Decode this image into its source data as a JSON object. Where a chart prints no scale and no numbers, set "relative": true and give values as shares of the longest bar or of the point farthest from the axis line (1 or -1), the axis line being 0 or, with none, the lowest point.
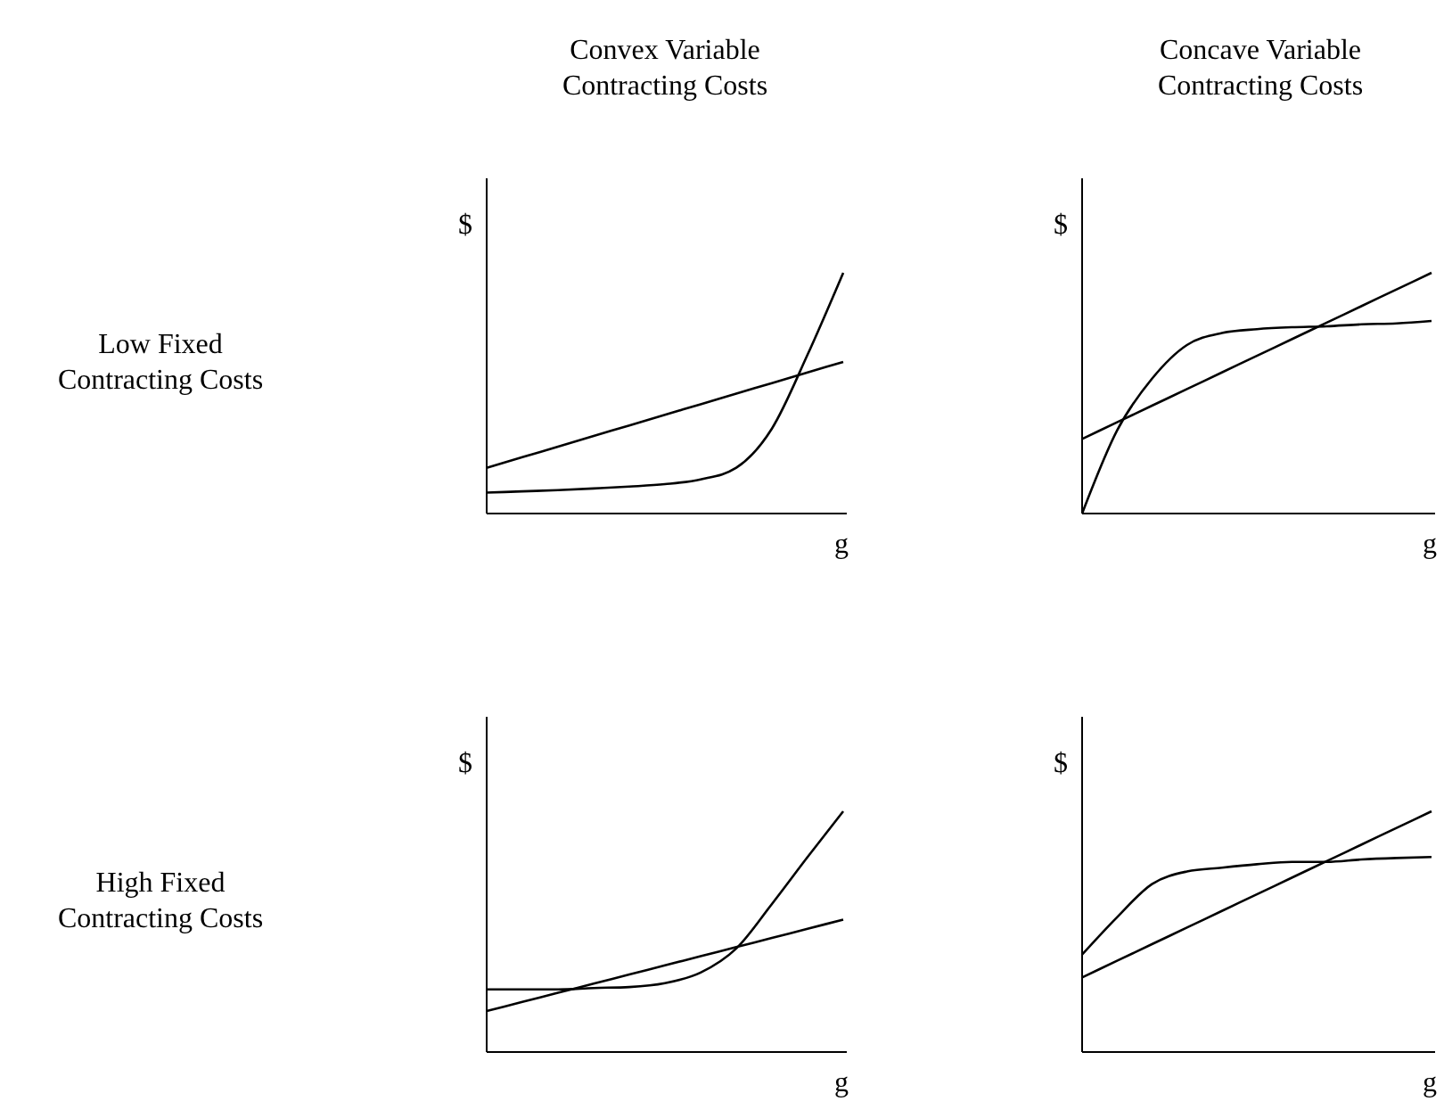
{
  "chart_data": [
    {
      "type": "line",
      "relative": true,
      "title": "Convex Variable\nContracting Costs",
      "xlabel": "g",
      "ylabel": "$",
      "annotations": [
        "Low Fixed\nContracting Costs"
      ],
      "categories": [
        null,
        null,
        null,
        null,
        null,
        null,
        null,
        null,
        null,
        null,
        null
      ],
      "series": [
        {
          "color": "#000000",
          "values": [
            0.19,
            0.234,
            0.278,
            0.322,
            0.366,
            0.41,
            0.454,
            0.498,
            0.542,
            0.586,
            0.63
          ]
        },
        {
          "color": "#000000",
          "values": [
            0.087,
            0.092,
            0.097,
            0.104,
            0.112,
            0.122,
            0.142,
            0.19,
            0.353,
            0.66,
            1
          ]
        }
      ]
    },
    {
      "type": "line",
      "relative": true,
      "title": "Concave Variable\nContracting Costs",
      "xlabel": "g",
      "ylabel": "$",
      "categories": [
        null,
        null,
        null,
        null,
        null,
        null,
        null,
        null,
        null,
        null,
        null
      ],
      "series": [
        {
          "color": "#000000",
          "values": [
            0.31,
            0.379,
            0.448,
            0.517,
            0.586,
            0.655,
            0.724,
            0.793,
            0.862,
            0.931,
            1
          ]
        },
        {
          "color": "#000000",
          "values": [
            0,
            0.345,
            0.56,
            0.7,
            0.75,
            0.766,
            0.774,
            0.778,
            0.786,
            0.79,
            0.8
          ]
        }
      ]
    },
    {
      "type": "line",
      "relative": true,
      "xlabel": "g",
      "ylabel": "$",
      "annotations": [
        "High Fixed\nContracting Costs"
      ],
      "categories": [
        null,
        null,
        null,
        null,
        null,
        null,
        null,
        null,
        null,
        null,
        null
      ],
      "series": [
        {
          "color": "#000000",
          "values": [
            0.17,
            0.208,
            0.246,
            0.284,
            0.322,
            0.36,
            0.398,
            0.436,
            0.474,
            0.512,
            0.55
          ]
        },
        {
          "color": "#000000",
          "values": [
            0.26,
            0.26,
            0.26,
            0.266,
            0.27,
            0.286,
            0.33,
            0.43,
            0.615,
            0.81,
            1
          ]
        }
      ]
    },
    {
      "type": "line",
      "relative": true,
      "xlabel": "g",
      "ylabel": "$",
      "categories": [
        null,
        null,
        null,
        null,
        null,
        null,
        null,
        null,
        null,
        null,
        null
      ],
      "series": [
        {
          "color": "#000000",
          "values": [
            0.31,
            0.379,
            0.448,
            0.517,
            0.586,
            0.655,
            0.724,
            0.793,
            0.862,
            0.931,
            1
          ]
        },
        {
          "color": "#000000",
          "values": [
            0.405,
            0.56,
            0.698,
            0.75,
            0.766,
            0.78,
            0.79,
            0.79,
            0.8,
            0.806,
            0.81
          ]
        }
      ]
    }
  ]
}
